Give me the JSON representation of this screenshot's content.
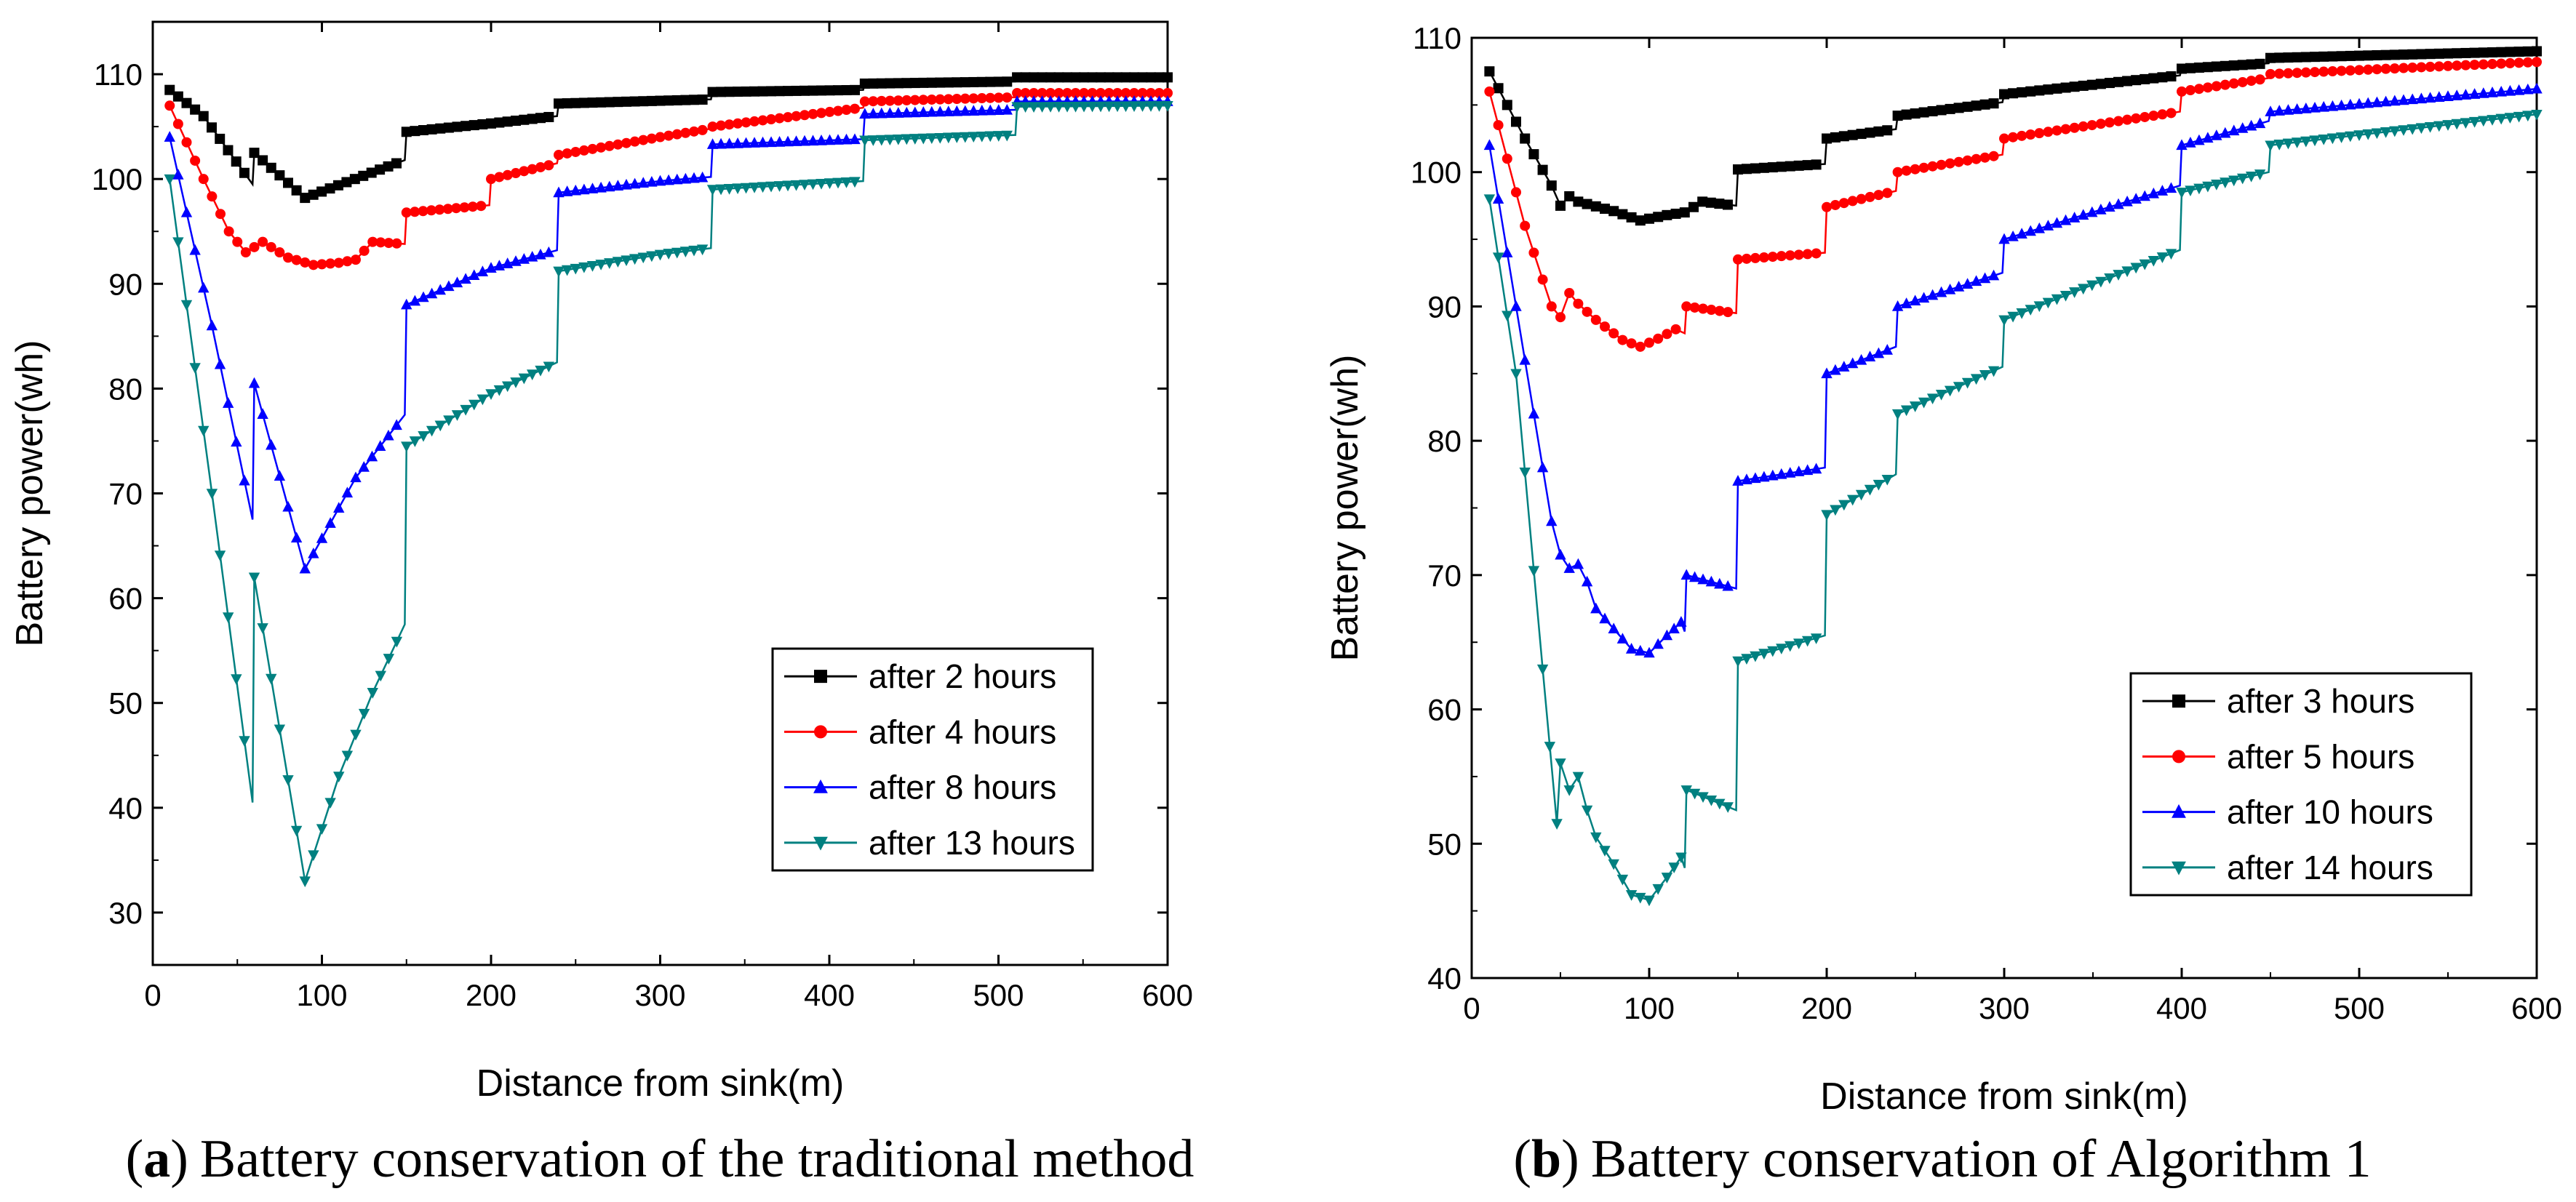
{
  "chart_data": [
    {
      "type": "line",
      "panel": "a",
      "caption_letter": "a",
      "caption_open": "(",
      "caption_close": ")",
      "caption": "Battery conservation of the traditional method",
      "xlabel": "Distance from sink(m)",
      "ylabel": "Battery power(wh)",
      "xlim": [
        0,
        600
      ],
      "ylim": [
        25,
        115
      ],
      "xticks": [
        0,
        100,
        200,
        300,
        400,
        500,
        600
      ],
      "yticks": [
        30,
        40,
        50,
        60,
        70,
        80,
        90,
        100,
        110
      ],
      "legend_position": "bottom-right",
      "series": [
        {
          "name": "after 2 hours",
          "color": "#000000",
          "marker": "square",
          "points": [
            [
              10,
              108.5
            ],
            [
              30,
              106
            ],
            [
              59,
              99.5
            ],
            [
              60,
              102.5
            ],
            [
              90,
              98.2
            ],
            [
              149,
              101.8
            ],
            [
              150,
              104.5
            ],
            [
              200,
              105.3
            ],
            [
              239,
              106
            ],
            [
              240,
              107.2
            ],
            [
              330,
              107.6
            ],
            [
              331,
              108.3
            ],
            [
              420,
              108.5
            ],
            [
              421,
              109.1
            ],
            [
              510,
              109.3
            ],
            [
              511,
              109.7
            ],
            [
              600,
              109.7
            ]
          ]
        },
        {
          "name": "after 4 hours",
          "color": "#ff0000",
          "marker": "circle",
          "points": [
            [
              10,
              107
            ],
            [
              30,
              100
            ],
            [
              45,
              95
            ],
            [
              55,
              93
            ],
            [
              65,
              94
            ],
            [
              80,
              92.5
            ],
            [
              95,
              91.8
            ],
            [
              110,
              92
            ],
            [
              120,
              92.3
            ],
            [
              130,
              94
            ],
            [
              149,
              93.8
            ],
            [
              150,
              96.8
            ],
            [
              199,
              97.5
            ],
            [
              200,
              100
            ],
            [
              239,
              101.5
            ],
            [
              240,
              102.3
            ],
            [
              300,
              104
            ],
            [
              330,
              104.8
            ],
            [
              331,
              105
            ],
            [
              420,
              106.8
            ],
            [
              421,
              107.4
            ],
            [
              510,
              107.8
            ],
            [
              511,
              108.2
            ],
            [
              600,
              108.2
            ]
          ]
        },
        {
          "name": "after 8 hours",
          "color": "#0000ff",
          "marker": "triangle-up",
          "points": [
            [
              10,
              104
            ],
            [
              35,
              86
            ],
            [
              59,
              67.5
            ],
            [
              60,
              80.5
            ],
            [
              90,
              62.8
            ],
            [
              120,
              71.5
            ],
            [
              149,
              77.5
            ],
            [
              150,
              88
            ],
            [
              200,
              91.5
            ],
            [
              239,
              93.2
            ],
            [
              240,
              98.7
            ],
            [
              300,
              99.8
            ],
            [
              330,
              100.2
            ],
            [
              331,
              103.3
            ],
            [
              420,
              103.8
            ],
            [
              421,
              106.2
            ],
            [
              510,
              106.6
            ],
            [
              511,
              107.4
            ],
            [
              600,
              107.4
            ]
          ]
        },
        {
          "name": "after 13 hours",
          "color": "#008080",
          "marker": "triangle-down",
          "points": [
            [
              10,
              100
            ],
            [
              35,
              70
            ],
            [
              59,
              40.5
            ],
            [
              60,
              62
            ],
            [
              90,
              33
            ],
            [
              110,
              43
            ],
            [
              130,
              51
            ],
            [
              149,
              57.5
            ],
            [
              150,
              74.5
            ],
            [
              200,
              79.5
            ],
            [
              239,
              82.5
            ],
            [
              240,
              91.2
            ],
            [
              300,
              92.8
            ],
            [
              330,
              93.4
            ],
            [
              331,
              99
            ],
            [
              420,
              99.8
            ],
            [
              421,
              103.7
            ],
            [
              510,
              104.2
            ],
            [
              511,
              106.9
            ],
            [
              600,
              107
            ]
          ]
        }
      ]
    },
    {
      "type": "line",
      "panel": "b",
      "caption_letter": "b",
      "caption_open": "(",
      "caption_close": ")",
      "caption": "Battery conservation of Algorithm 1",
      "xlabel": "Distance from sink(m)",
      "ylabel": "Battery power(wh)",
      "xlim": [
        0,
        600
      ],
      "ylim": [
        40,
        110
      ],
      "xticks": [
        0,
        100,
        200,
        300,
        400,
        500,
        600
      ],
      "yticks": [
        40,
        50,
        60,
        70,
        80,
        90,
        100,
        110
      ],
      "legend_position": "bottom-right",
      "series": [
        {
          "name": "after 3 hours",
          "color": "#000000",
          "marker": "square",
          "points": [
            [
              10,
              107.5
            ],
            [
              30,
              102.5
            ],
            [
              45,
              99
            ],
            [
              50,
              97.5
            ],
            [
              55,
              98.2
            ],
            [
              60,
              97.8
            ],
            [
              80,
              97.1
            ],
            [
              95,
              96.4
            ],
            [
              110,
              96.8
            ],
            [
              120,
              97
            ],
            [
              130,
              97.8
            ],
            [
              149,
              97.5
            ],
            [
              150,
              100.2
            ],
            [
              199,
              100.6
            ],
            [
              200,
              102.5
            ],
            [
              239,
              103.2
            ],
            [
              240,
              104.2
            ],
            [
              299,
              105.2
            ],
            [
              300,
              105.8
            ],
            [
              399,
              107.2
            ],
            [
              400,
              107.7
            ],
            [
              449,
              108.1
            ],
            [
              450,
              108.5
            ],
            [
              600,
              109
            ]
          ]
        },
        {
          "name": "after 5 hours",
          "color": "#ff0000",
          "marker": "circle",
          "points": [
            [
              10,
              106
            ],
            [
              30,
              96
            ],
            [
              45,
              90
            ],
            [
              50,
              89.2
            ],
            [
              55,
              91
            ],
            [
              60,
              90.2
            ],
            [
              70,
              89
            ],
            [
              85,
              87.5
            ],
            [
              95,
              87
            ],
            [
              105,
              87.6
            ],
            [
              115,
              88.3
            ],
            [
              120,
              88
            ],
            [
              121,
              90
            ],
            [
              149,
              89.5
            ],
            [
              150,
              93.5
            ],
            [
              199,
              94
            ],
            [
              200,
              97.4
            ],
            [
              239,
              98.6
            ],
            [
              240,
              100
            ],
            [
              299,
              101.3
            ],
            [
              300,
              102.5
            ],
            [
              399,
              104.5
            ],
            [
              400,
              106
            ],
            [
              449,
              107
            ],
            [
              450,
              107.3
            ],
            [
              600,
              108.2
            ]
          ]
        },
        {
          "name": "after 10 hours",
          "color": "#0000ff",
          "marker": "triangle-up",
          "points": [
            [
              10,
              102
            ],
            [
              30,
              86
            ],
            [
              45,
              74
            ],
            [
              50,
              71.5
            ],
            [
              55,
              70.5
            ],
            [
              60,
              70.8
            ],
            [
              65,
              69.5
            ],
            [
              70,
              67.5
            ],
            [
              80,
              66
            ],
            [
              90,
              64.5
            ],
            [
              100,
              64.2
            ],
            [
              110,
              65.5
            ],
            [
              118,
              66.5
            ],
            [
              120,
              65.8
            ],
            [
              121,
              70
            ],
            [
              149,
              69
            ],
            [
              150,
              77
            ],
            [
              199,
              78
            ],
            [
              200,
              85
            ],
            [
              239,
              87
            ],
            [
              240,
              90
            ],
            [
              299,
              92.5
            ],
            [
              300,
              95
            ],
            [
              399,
              99
            ],
            [
              400,
              102
            ],
            [
              449,
              103.8
            ],
            [
              450,
              104.5
            ],
            [
              600,
              106.2
            ]
          ]
        },
        {
          "name": "after 14 hours",
          "color": "#008080",
          "marker": "triangle-down",
          "points": [
            [
              10,
              98
            ],
            [
              25,
              85
            ],
            [
              40,
              63
            ],
            [
              48,
              51.5
            ],
            [
              50,
              56
            ],
            [
              55,
              54
            ],
            [
              60,
              55
            ],
            [
              65,
              52.5
            ],
            [
              70,
              50.5
            ],
            [
              80,
              48.5
            ],
            [
              90,
              46.2
            ],
            [
              100,
              45.8
            ],
            [
              110,
              47.5
            ],
            [
              118,
              49
            ],
            [
              120,
              48.2
            ],
            [
              121,
              54
            ],
            [
              149,
              52.5
            ],
            [
              150,
              63.6
            ],
            [
              199,
              65.5
            ],
            [
              200,
              74.5
            ],
            [
              239,
              77.5
            ],
            [
              240,
              82
            ],
            [
              299,
              85.5
            ],
            [
              300,
              89
            ],
            [
              399,
              94.2
            ],
            [
              400,
              98.5
            ],
            [
              449,
              100
            ],
            [
              450,
              102
            ],
            [
              600,
              104.3
            ]
          ]
        }
      ]
    }
  ]
}
